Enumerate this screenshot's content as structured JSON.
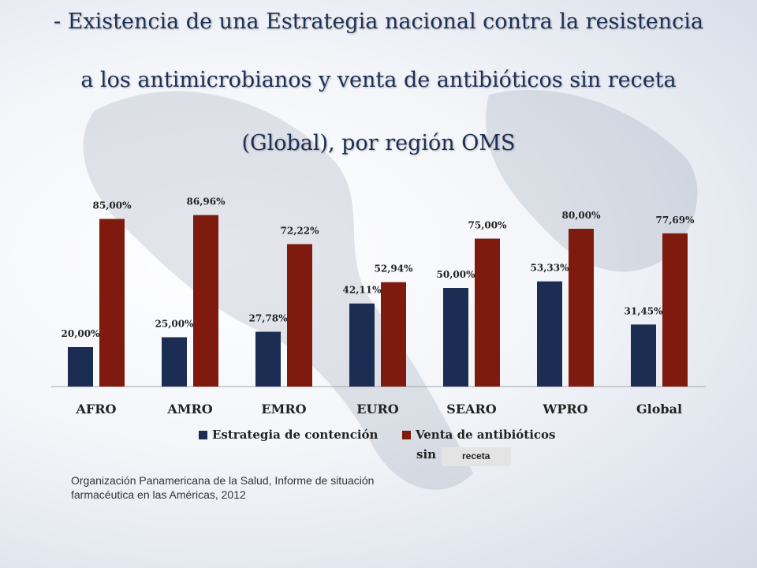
{
  "title": {
    "line1": "- Existencia de una Estrategia nacional  contra la resistencia",
    "line2": "a los antimicrobianos y venta de antibióticos sin receta",
    "line3": "(Global), por región OMS"
  },
  "legend": {
    "series1": "Estrategia de contención",
    "series2": "Venta de antibióticos",
    "sin": "sin",
    "receta": "receta"
  },
  "source": {
    "line1": "Organización Panamericana de la Salud, Informe de situación",
    "line2": "farmacéutica en las Américas, 2012"
  },
  "chart_data": {
    "type": "bar",
    "categories": [
      "AFRO",
      "AMRO",
      "EMRO",
      "EURO",
      "SEARO",
      "WPRO",
      "Global"
    ],
    "series": [
      {
        "name": "Estrategia de contención",
        "values": [
          20.0,
          25.0,
          27.78,
          42.11,
          50.0,
          53.33,
          31.45
        ],
        "labels": [
          "20,00%",
          "25,00%",
          "27,78%",
          "42,11%",
          "50,00%",
          "53,33%",
          "31,45%"
        ],
        "color": "#1b2d52"
      },
      {
        "name": "Venta de antibióticos sin receta",
        "values": [
          85.0,
          86.96,
          72.22,
          52.94,
          75.0,
          80.0,
          77.69
        ],
        "labels": [
          "85,00%",
          "86,96%",
          "72,22%",
          "52,94%",
          "75,00%",
          "80,00%",
          "77,69%"
        ],
        "color": "#7e1a0e"
      }
    ],
    "ylim": [
      0,
      100
    ],
    "grid": false,
    "legend_position": "bottom",
    "xlabel": "",
    "ylabel": ""
  }
}
